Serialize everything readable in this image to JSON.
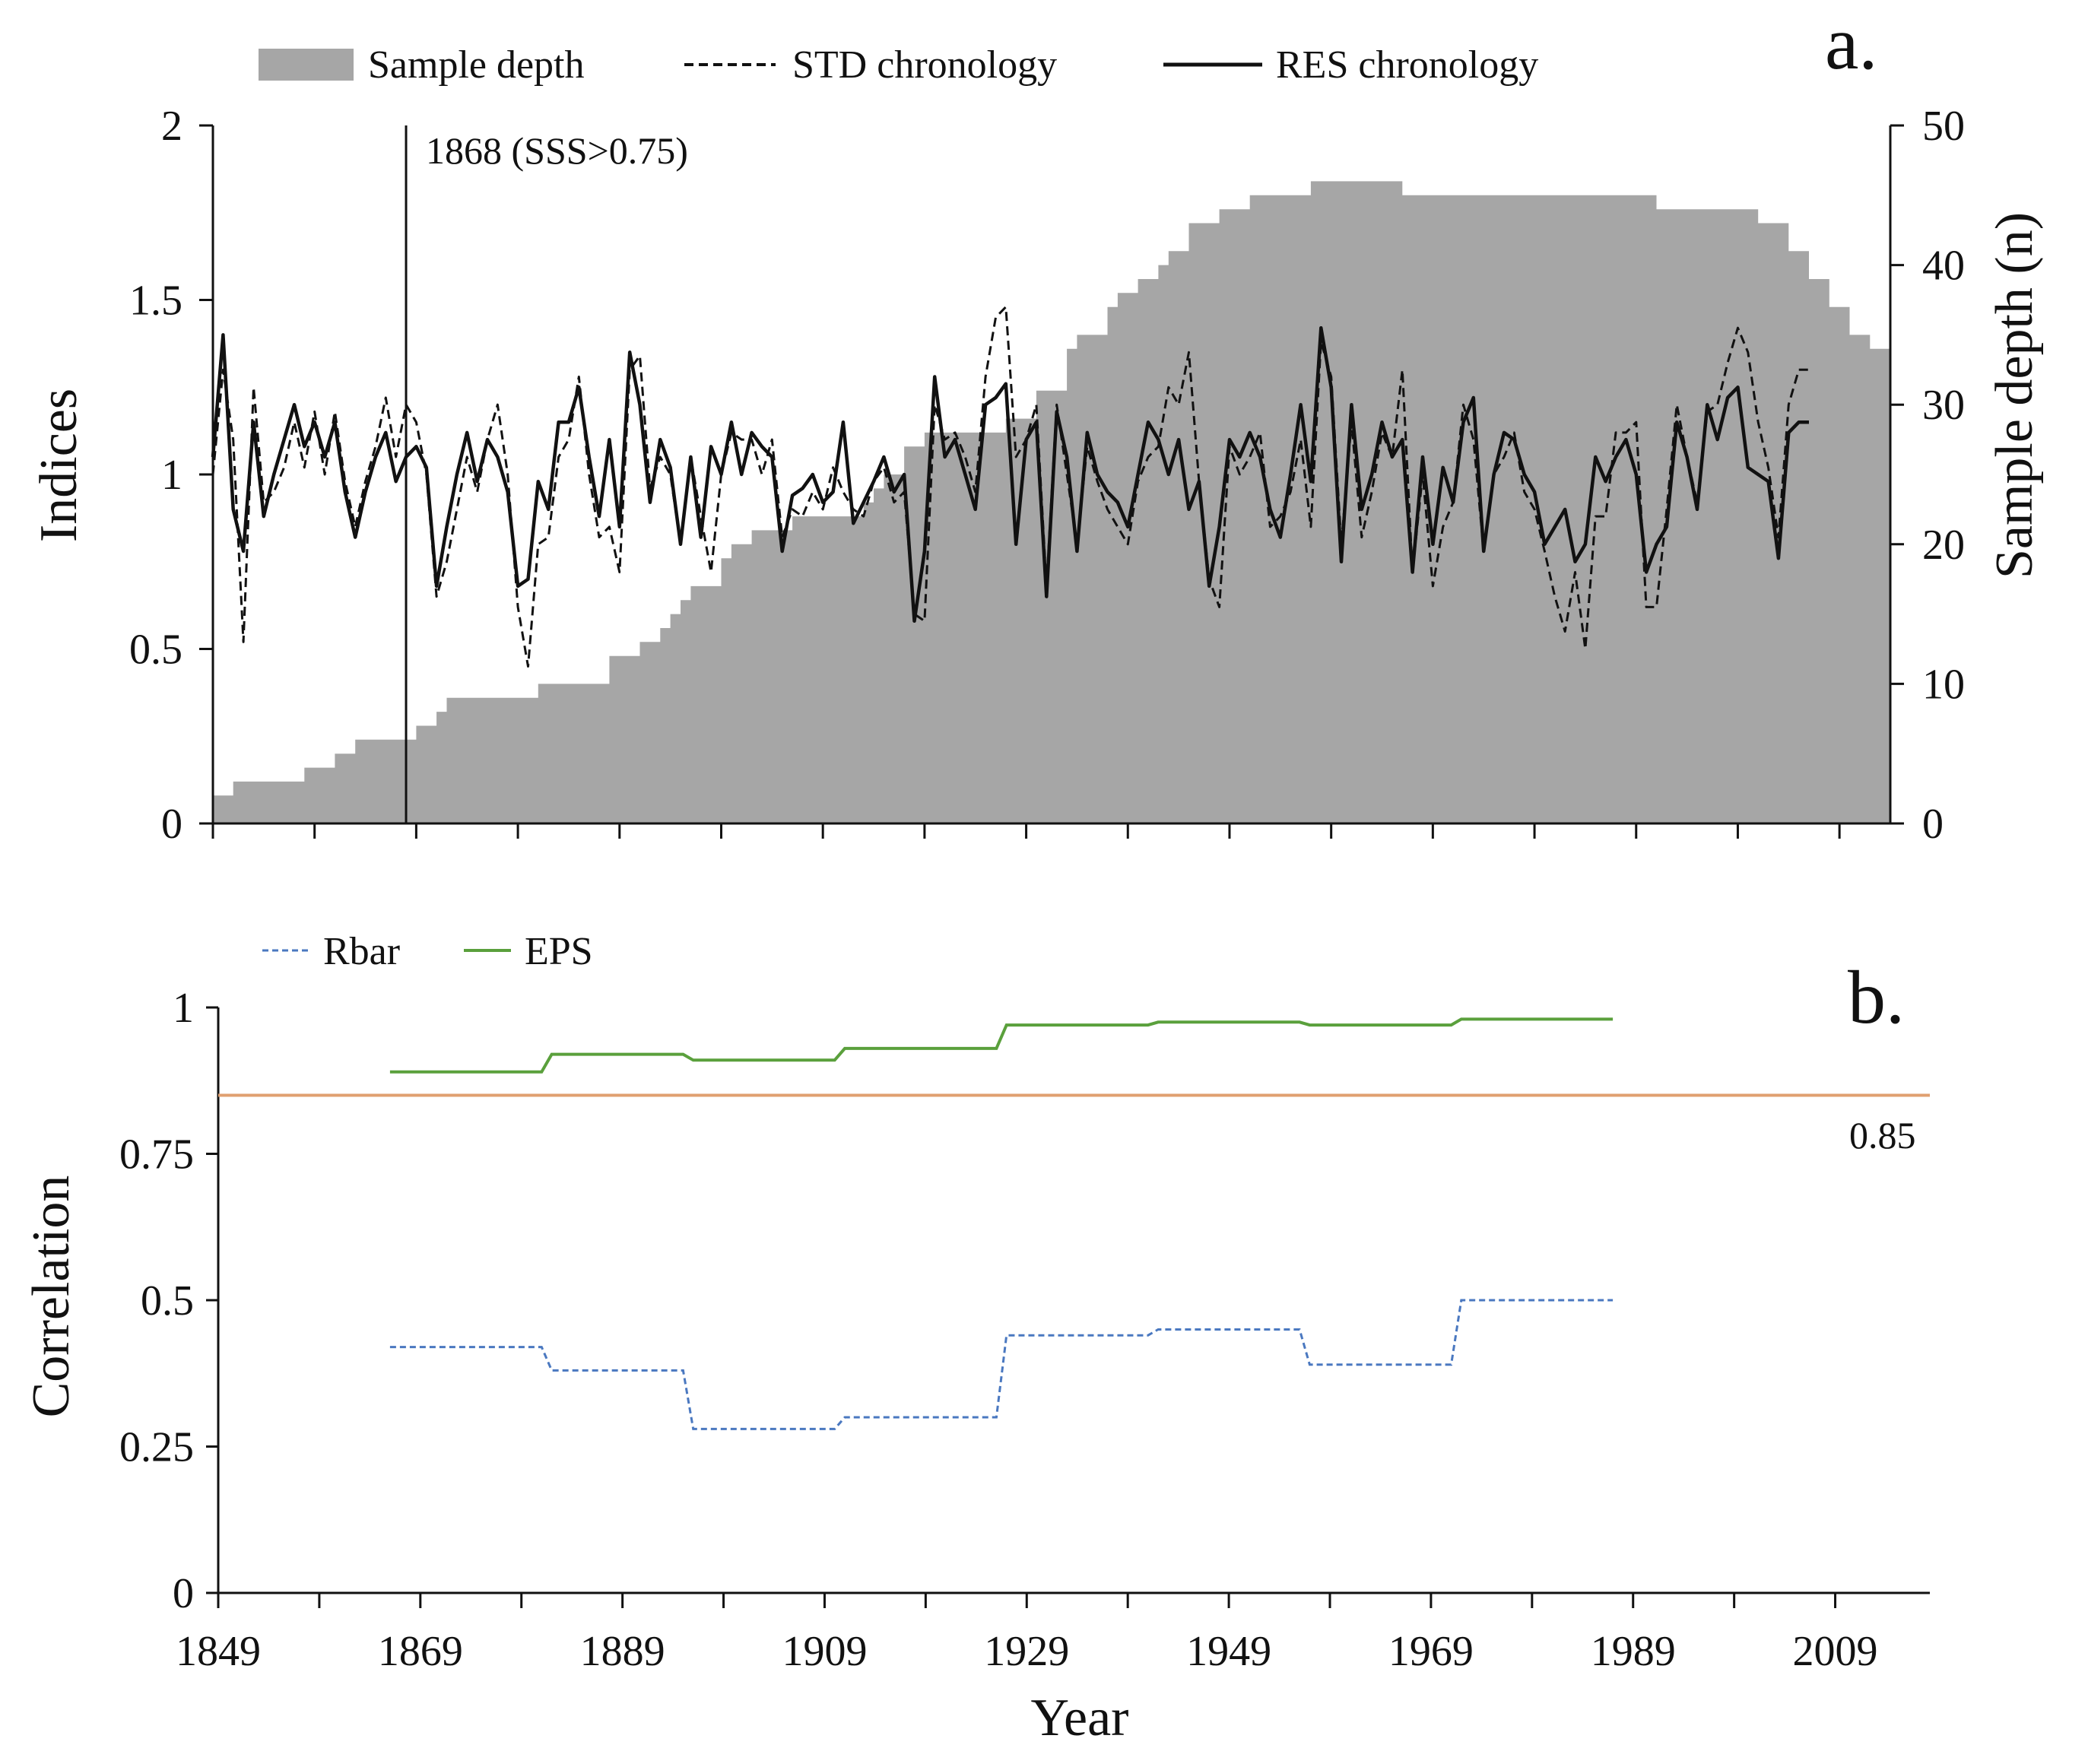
{
  "chart_data": [
    {
      "type": "line",
      "panel_label": "a.",
      "legend": {
        "sample_depth": "Sample depth",
        "std": "STD chronology",
        "res": "RES chronology",
        "placement": "top"
      },
      "ylabel": "Indices",
      "y2label": "Sample depth (n)",
      "ylim": [
        0,
        2
      ],
      "y2lim": [
        0,
        50
      ],
      "yticks": [
        "0",
        "0.5",
        "1",
        "1.5",
        "2"
      ],
      "y2ticks": [
        "0",
        "10",
        "20",
        "30",
        "40",
        "50"
      ],
      "xlim": [
        1849,
        2014
      ],
      "annotation": {
        "text": "1868 (SSS>0.75)",
        "year": 1868
      },
      "sample_depth": {
        "name": "Sample depth",
        "steps": [
          [
            1849,
            2
          ],
          [
            1851,
            3
          ],
          [
            1858,
            4
          ],
          [
            1861,
            5
          ],
          [
            1863,
            6
          ],
          [
            1869,
            7
          ],
          [
            1871,
            8
          ],
          [
            1872,
            9
          ],
          [
            1881,
            10
          ],
          [
            1888,
            12
          ],
          [
            1891,
            13
          ],
          [
            1893,
            14
          ],
          [
            1894,
            15
          ],
          [
            1895,
            16
          ],
          [
            1896,
            17
          ],
          [
            1899,
            19
          ],
          [
            1900,
            20
          ],
          [
            1902,
            21
          ],
          [
            1906,
            22
          ],
          [
            1913,
            23
          ],
          [
            1914,
            24
          ],
          [
            1915,
            25
          ],
          [
            1917,
            27
          ],
          [
            1919,
            28
          ],
          [
            1927,
            29
          ],
          [
            1930,
            31
          ],
          [
            1933,
            34
          ],
          [
            1934,
            35
          ],
          [
            1937,
            37
          ],
          [
            1938,
            38
          ],
          [
            1940,
            39
          ],
          [
            1942,
            40
          ],
          [
            1943,
            41
          ],
          [
            1945,
            43
          ],
          [
            1948,
            44
          ],
          [
            1951,
            45
          ],
          [
            1957,
            46
          ],
          [
            1966,
            45
          ],
          [
            1991,
            44
          ],
          [
            2001,
            43
          ],
          [
            2004,
            41
          ],
          [
            2006,
            39
          ],
          [
            2008,
            37
          ],
          [
            2010,
            35
          ],
          [
            2012,
            34
          ],
          [
            2014,
            0
          ]
        ]
      },
      "series": [
        {
          "name": "RES chronology",
          "style": "solid",
          "x_start": 1849,
          "values": [
            1.05,
            1.4,
            0.9,
            0.78,
            1.15,
            0.88,
            1.0,
            1.1,
            1.2,
            1.08,
            1.15,
            1.05,
            1.15,
            0.95,
            0.82,
            0.95,
            1.05,
            1.12,
            0.98,
            1.05,
            1.08,
            1.02,
            0.68,
            0.85,
            1.0,
            1.12,
            0.98,
            1.1,
            1.05,
            0.95,
            0.68,
            0.7,
            0.98,
            0.9,
            1.15,
            1.15,
            1.25,
            1.05,
            0.88,
            1.1,
            0.85,
            1.35,
            1.2,
            0.92,
            1.1,
            1.02,
            0.8,
            1.05,
            0.82,
            1.08,
            1.0,
            1.15,
            1.0,
            1.12,
            1.08,
            1.05,
            0.78,
            0.94,
            0.96,
            1.0,
            0.92,
            0.95,
            1.15,
            0.86,
            0.92,
            0.98,
            1.05,
            0.95,
            1.0,
            0.58,
            0.78,
            1.28,
            1.05,
            1.1,
            1.0,
            0.9,
            1.2,
            1.22,
            1.26,
            0.8,
            1.1,
            1.15,
            0.65,
            1.18,
            1.05,
            0.78,
            1.12,
            1.0,
            0.95,
            0.92,
            0.85,
            1.0,
            1.15,
            1.1,
            1.0,
            1.1,
            0.9,
            0.98,
            0.68,
            0.85,
            1.1,
            1.05,
            1.12,
            1.05,
            0.9,
            0.82,
            1.0,
            1.2,
            0.98,
            1.42,
            1.25,
            0.75,
            1.2,
            0.9,
            1.0,
            1.15,
            1.05,
            1.1,
            0.72,
            1.05,
            0.8,
            1.02,
            0.92,
            1.15,
            1.22,
            0.78,
            1.0,
            1.12,
            1.1,
            1.0,
            0.95,
            0.8,
            0.85,
            0.9,
            0.75,
            0.8,
            1.05,
            0.98,
            1.05,
            1.1,
            1.0,
            0.72,
            0.8,
            0.85,
            1.15,
            1.05,
            0.9,
            1.2,
            1.1,
            1.22,
            1.25,
            1.02,
            1.0,
            0.98,
            0.76,
            1.12,
            1.15,
            1.15
          ]
        },
        {
          "name": "STD chronology",
          "style": "dashed",
          "x_start": 1849,
          "values": [
            1.0,
            1.3,
            1.1,
            0.52,
            1.25,
            0.92,
            0.95,
            1.02,
            1.15,
            1.02,
            1.18,
            1.0,
            1.18,
            0.98,
            0.85,
            0.98,
            1.08,
            1.22,
            1.05,
            1.2,
            1.15,
            1.0,
            0.65,
            0.75,
            0.9,
            1.05,
            0.95,
            1.1,
            1.2,
            1.0,
            0.62,
            0.45,
            0.8,
            0.82,
            1.05,
            1.1,
            1.28,
            1.0,
            0.82,
            0.85,
            0.72,
            1.3,
            1.34,
            0.96,
            1.05,
            1.0,
            0.8,
            1.05,
            0.88,
            0.72,
            1.0,
            1.12,
            1.1,
            1.1,
            1.0,
            1.1,
            0.82,
            0.9,
            0.88,
            0.95,
            0.9,
            1.02,
            0.95,
            0.9,
            0.88,
            0.98,
            1.02,
            0.92,
            0.95,
            0.6,
            0.58,
            1.2,
            1.1,
            1.12,
            1.05,
            0.95,
            1.28,
            1.45,
            1.48,
            1.05,
            1.1,
            1.2,
            0.68,
            1.2,
            1.0,
            0.8,
            1.08,
            0.98,
            0.9,
            0.85,
            0.8,
            0.98,
            1.05,
            1.08,
            1.25,
            1.2,
            1.35,
            0.98,
            0.7,
            0.62,
            1.08,
            1.0,
            1.05,
            1.12,
            0.85,
            0.88,
            0.95,
            1.1,
            0.85,
            1.38,
            1.28,
            0.8,
            1.15,
            0.82,
            0.95,
            1.12,
            1.05,
            1.3,
            0.72,
            1.0,
            0.68,
            0.85,
            0.92,
            1.2,
            1.1,
            0.78,
            1.0,
            1.05,
            1.12,
            0.95,
            0.9,
            0.78,
            0.65,
            0.55,
            0.72,
            0.5,
            0.88,
            0.88,
            1.12,
            1.12,
            1.15,
            0.62,
            0.62,
            0.9,
            1.2,
            1.05,
            0.92,
            1.18,
            1.2,
            1.32,
            1.42,
            1.35,
            1.15,
            1.02,
            0.82,
            1.2,
            1.3,
            1.3
          ]
        }
      ],
      "xticks_unlabeled": true
    },
    {
      "type": "line",
      "panel_label": "b.",
      "legend": {
        "rbar": "Rbar",
        "eps": "EPS",
        "placement": "top-left"
      },
      "title": "",
      "xlabel": "Year",
      "ylabel": "Correlation",
      "xlim": [
        1849,
        2014
      ],
      "ylim": [
        0,
        1
      ],
      "yticks": [
        "0",
        "0.25",
        "0.5",
        "0.75",
        "1"
      ],
      "xtick_labels": [
        "1849",
        "1869",
        "1889",
        "1909",
        "1929",
        "1949",
        "1969",
        "1989",
        "2009"
      ],
      "threshold": {
        "value": 0.85,
        "label": "0.85"
      },
      "series": [
        {
          "name": "EPS",
          "style": "solid",
          "points": [
            [
              1866,
              0.89
            ],
            [
              1881,
              0.89
            ],
            [
              1882,
              0.92
            ],
            [
              1895,
              0.92
            ],
            [
              1896,
              0.91
            ],
            [
              1910,
              0.91
            ],
            [
              1911,
              0.93
            ],
            [
              1926,
              0.93
            ],
            [
              1927,
              0.97
            ],
            [
              1941,
              0.97
            ],
            [
              1942,
              0.975
            ],
            [
              1956,
              0.975
            ],
            [
              1957,
              0.97
            ],
            [
              1971,
              0.97
            ],
            [
              1972,
              0.98
            ],
            [
              1987,
              0.98
            ]
          ]
        },
        {
          "name": "Rbar",
          "style": "dashed",
          "points": [
            [
              1866,
              0.42
            ],
            [
              1881,
              0.42
            ],
            [
              1882,
              0.38
            ],
            [
              1895,
              0.38
            ],
            [
              1896,
              0.28
            ],
            [
              1910,
              0.28
            ],
            [
              1911,
              0.3
            ],
            [
              1926,
              0.3
            ],
            [
              1927,
              0.44
            ],
            [
              1941,
              0.44
            ],
            [
              1942,
              0.45
            ],
            [
              1956,
              0.45
            ],
            [
              1957,
              0.39
            ],
            [
              1971,
              0.39
            ],
            [
              1972,
              0.5
            ],
            [
              1987,
              0.5
            ]
          ]
        }
      ]
    }
  ],
  "colors": {
    "sample_depth_fill": "#a6a6a6",
    "line": "#111111",
    "rbar": "#4a78c0",
    "eps": "#5aa03c",
    "threshold": "#e0a070"
  }
}
